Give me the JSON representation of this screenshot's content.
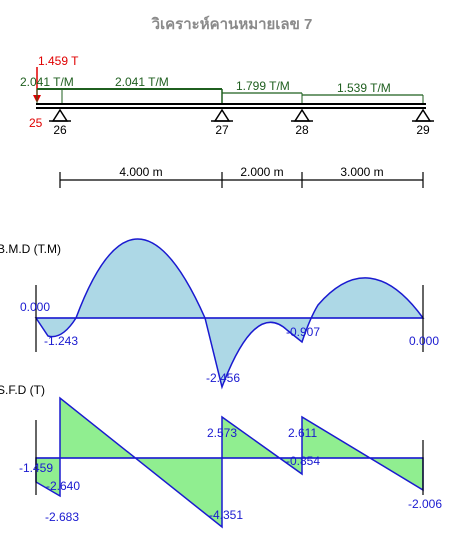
{
  "title": "วิเคราะห์คานหมายเลข 7",
  "point_load": "1.459 T",
  "left_support_moment": "25",
  "loads": [
    {
      "label_left": "2.041 T/M",
      "label_mid": "2.041 T/M"
    },
    {
      "label": "1.799 T/M"
    },
    {
      "label": "1.539 T/M"
    }
  ],
  "nodes": [
    "26",
    "27",
    "28",
    "29"
  ],
  "spans": [
    "4.000 m",
    "2.000 m",
    "3.000 m"
  ],
  "bmd": {
    "label": "B.M.D (T.M)",
    "values": {
      "left_zero": "0.000",
      "left_min": "-1.243",
      "support_27": "-2.456",
      "support_28": "-0.907",
      "right_end": "0.000"
    }
  },
  "sfd": {
    "label": "S.F.D (T)",
    "values": {
      "v0": "-1.459",
      "v1": "-2.640",
      "v2": "-2.683",
      "v3": "-4.351",
      "v4": "2.573",
      "v5": "2.611",
      "v6": "-0.854",
      "v7": "-2.006"
    }
  },
  "colors": {
    "bmd_fill": "#add8e6",
    "sfd_fill": "#90ee90",
    "outline": "#1a1ad0",
    "load": "#1f5f1f",
    "point": "#e00000"
  }
}
